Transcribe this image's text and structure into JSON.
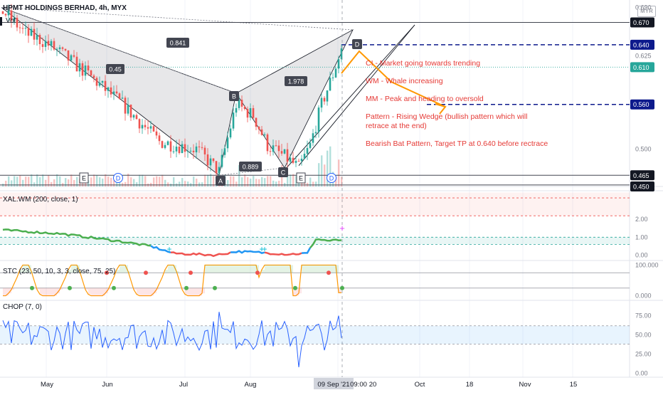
{
  "header": {
    "symbol_title": "HPMT HOLDINGS BERHAD, 4h, MYX",
    "volume_label": "Vol",
    "currency_badge": "MYR"
  },
  "annotations": [
    "CI - Market going towards trending",
    "WM - Whale increasing",
    "MM - Peak and heading to oversold",
    "Pattern - Rising Wedge (bullish pattern which will",
    "retrace at the end)",
    "Bearish Bat Pattern, Target TP at 0.640 before rectrace"
  ],
  "pattern": {
    "points": [
      "A",
      "B",
      "C",
      "D"
    ],
    "ratios": [
      "0.841",
      "0.45",
      "1.978",
      "0.889"
    ],
    "event_markers": [
      "E",
      "D",
      "E",
      "D"
    ]
  },
  "colors": {
    "up": "#26a69a",
    "down": "#ef5350",
    "annotation_red": "#e53935",
    "projection_orange": "#ff9800",
    "dashed_blue": "#0d1a8c",
    "chop_line": "#2962ff"
  },
  "chart_data": [
    {
      "type": "candlestick",
      "title": "HPMT HOLDINGS BERHAD, 4h, MYX",
      "price_axis_ticks": [
        "0.690",
        "0.625",
        "0.500"
      ],
      "price_labels": [
        {
          "value": "0.670",
          "style": "line"
        },
        {
          "value": "0.640",
          "style": "dashed"
        },
        {
          "value": "0.610",
          "style": "last"
        },
        {
          "value": "0.560",
          "style": "dashed"
        },
        {
          "value": "0.465",
          "style": "line"
        },
        {
          "value": "0.450",
          "style": "line"
        }
      ],
      "ylim": [
        0.45,
        0.7
      ],
      "x_tick_labels": [
        "May",
        "Jun",
        "Jul",
        "Aug",
        "Oct",
        "18",
        "Nov",
        "15"
      ],
      "cursor_date_label": "09 Sep '21",
      "cursor_time_label": "09:00",
      "partial_tick_label": "20",
      "pattern_prices": {
        "X": 0.69,
        "A": 0.465,
        "B": 0.575,
        "C": 0.475,
        "D": 0.66
      }
    },
    {
      "type": "line",
      "title": "XAL.WM (200, close, 1)",
      "ticks": [
        "2.00",
        "1.00",
        "0.00"
      ],
      "ylim": [
        -0.3,
        3.6
      ]
    },
    {
      "type": "line",
      "title": "STC (23, 50, 10, 3, 3, close, 75, 25)",
      "ticks": [
        "100.000",
        "0.000"
      ],
      "ylim": [
        -15,
        115
      ]
    },
    {
      "type": "line",
      "title": "CHOP (7, 0)",
      "ticks": [
        "75.00",
        "50.00",
        "25.00",
        "0.00"
      ],
      "band": [
        38.2,
        61.8
      ],
      "ylim": [
        -5,
        95
      ]
    }
  ]
}
